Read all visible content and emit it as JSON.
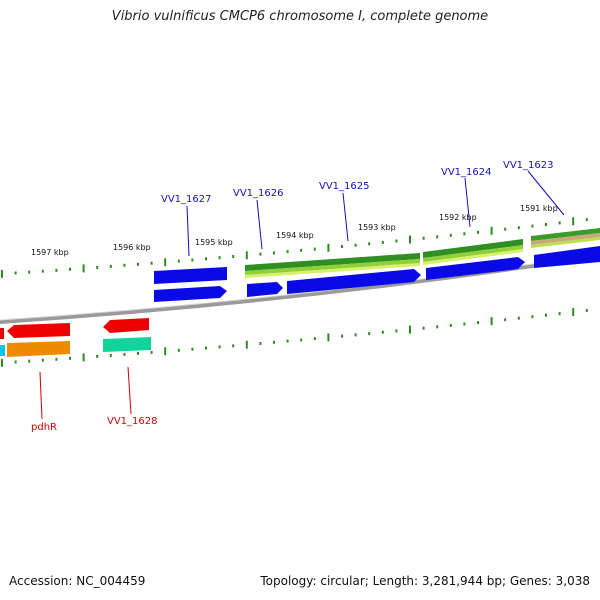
{
  "title": "Vibrio vulnificus CMCP6 chromosome I, complete genome",
  "footer": {
    "accession": "Accession: NC_004459",
    "stats": "Topology: circular; Length: 3,281,944 bp; Genes: 3,038"
  },
  "colors": {
    "tick": "#2e8b22",
    "backbone": "#777777",
    "gene_blue": "#0a0ae6",
    "gene_red": "#ee0000",
    "gene_orange": "#f08a00",
    "gene_teal": "#10d49a",
    "gene_cyan": "#00c8e6",
    "green_dark": "#2f8f22",
    "green_light": "#bfe84a",
    "label_blue": "#1010c0",
    "label_red": "#d40000"
  },
  "kbp_labels": [
    {
      "id": "kbp-1597",
      "text": "1597 kbp"
    },
    {
      "id": "kbp-1596",
      "text": "1596 kbp"
    },
    {
      "id": "kbp-1595",
      "text": "1595 kbp"
    },
    {
      "id": "kbp-1594",
      "text": "1594 kbp"
    },
    {
      "id": "kbp-1593",
      "text": "1593 kbp"
    },
    {
      "id": "kbp-1592",
      "text": "1592 kbp"
    },
    {
      "id": "kbp-1591",
      "text": "1591 kbp"
    }
  ],
  "gene_labels_top": [
    "VV1_1627",
    "VV1_1626",
    "VV1_1625",
    "VV1_1624",
    "VV1_1623"
  ],
  "gene_labels_bottom": [
    "pdhR",
    "VV1_1628"
  ]
}
